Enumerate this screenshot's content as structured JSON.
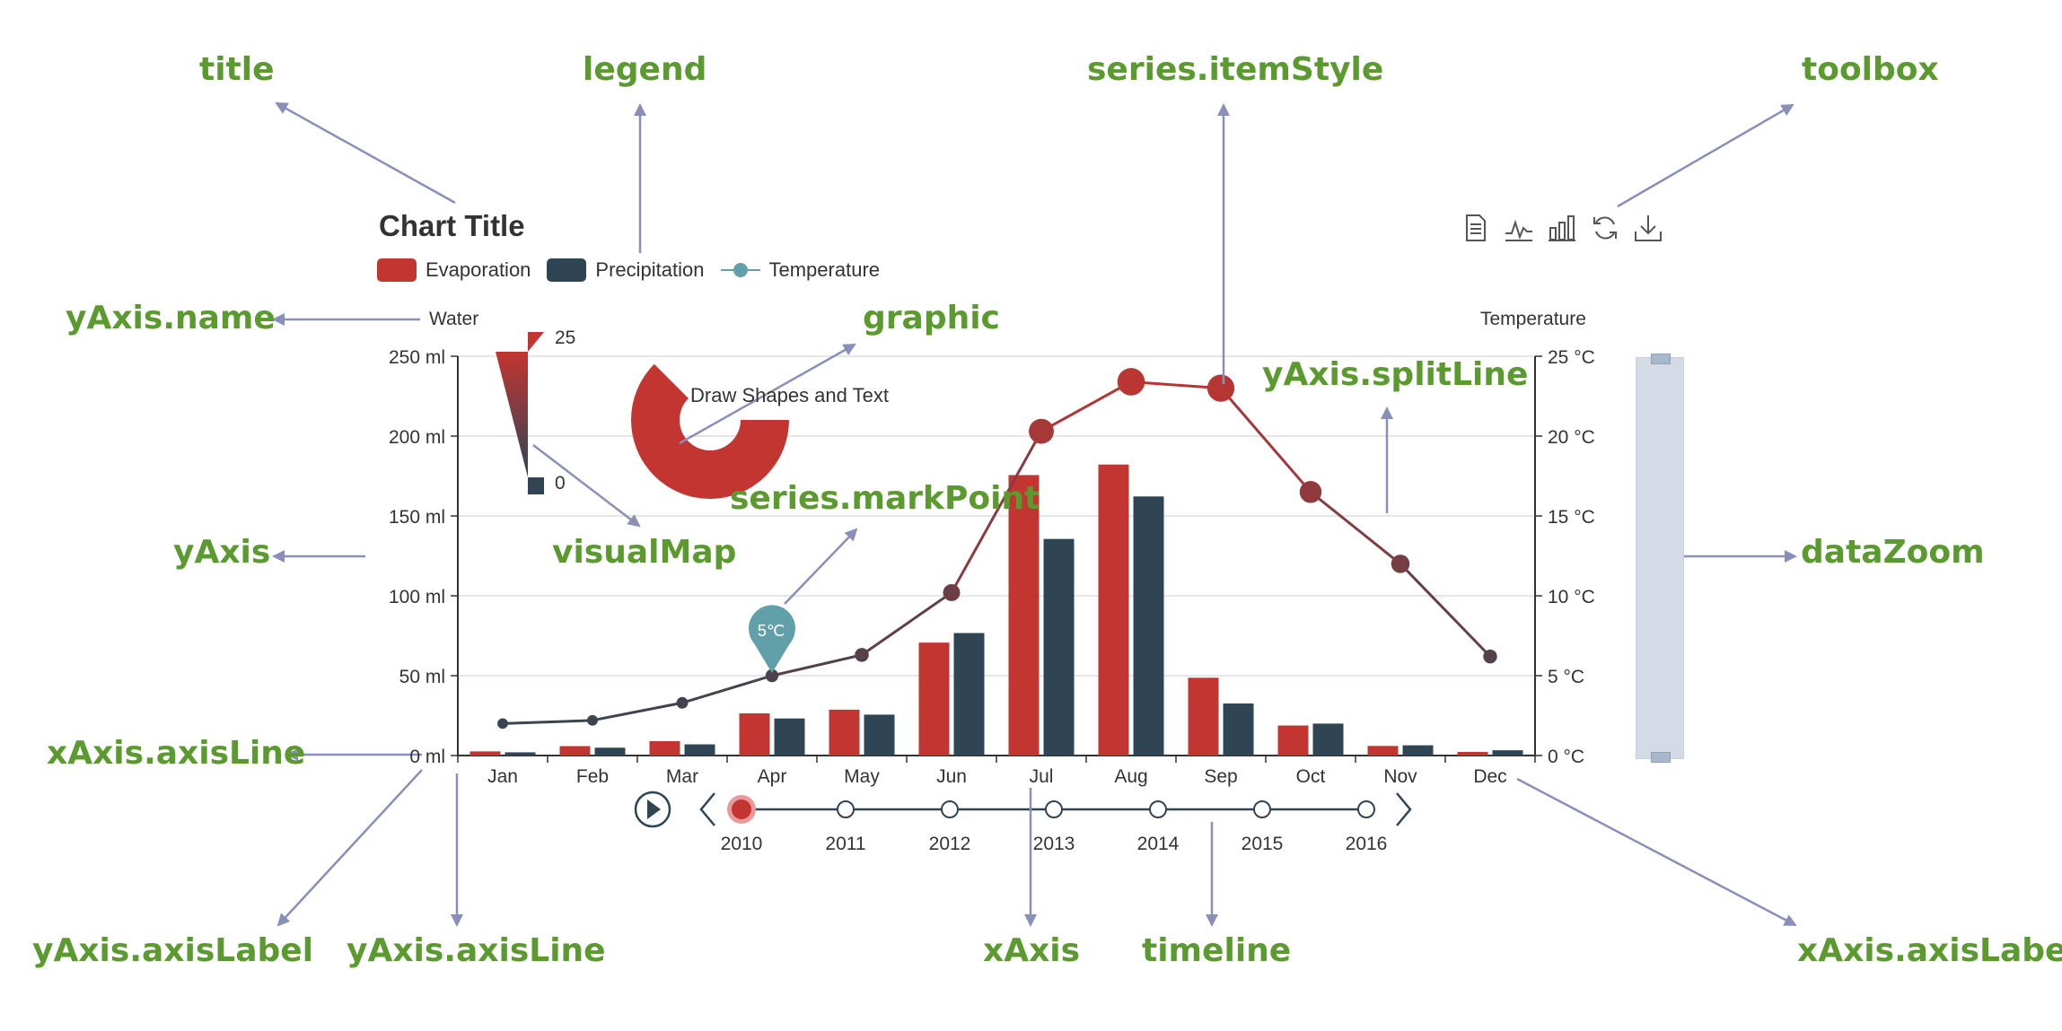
{
  "chart_data": {
    "type": "bar",
    "title": "Chart Title",
    "categories": [
      "Jan",
      "Feb",
      "Mar",
      "Apr",
      "May",
      "Jun",
      "Jul",
      "Aug",
      "Sep",
      "Oct",
      "Nov",
      "Dec"
    ],
    "series": [
      {
        "name": "Evaporation",
        "type": "bar",
        "values": [
          2.6,
          5.9,
          9.0,
          26.4,
          28.7,
          70.7,
          175.6,
          182.2,
          48.7,
          18.8,
          6.0,
          2.3
        ],
        "color": "#c23531"
      },
      {
        "name": "Precipitation",
        "type": "bar",
        "values": [
          2.0,
          4.9,
          7.0,
          23.2,
          25.6,
          76.7,
          135.6,
          162.2,
          32.6,
          20.0,
          6.4,
          3.3
        ],
        "color": "#2f4554"
      },
      {
        "name": "Temperature",
        "type": "line",
        "values": [
          2.0,
          2.2,
          3.3,
          5.0,
          6.3,
          10.2,
          20.3,
          23.4,
          23.0,
          16.5,
          12.0,
          6.2
        ],
        "color": "#61a0a8"
      }
    ],
    "y_left": {
      "name": "Water",
      "ylim": [
        0,
        250
      ],
      "ticks": [
        "0 ml",
        "50 ml",
        "100 ml",
        "150 ml",
        "200 ml",
        "250 ml"
      ]
    },
    "y_right": {
      "name": "Temperature",
      "ylim": [
        0,
        25
      ],
      "ticks": [
        "0 °C",
        "5 °C",
        "10 °C",
        "15 °C",
        "20 °C",
        "25 °C"
      ]
    },
    "grid": true,
    "legend_placement": "top-left",
    "mark_point": {
      "category": "Apr",
      "value": 5.0,
      "label": "5℃"
    },
    "visual_map": {
      "max_label": "25",
      "min_label": "0",
      "max": 25,
      "min": 0
    },
    "graphic_text": "Draw Shapes and Text",
    "timeline": {
      "years": [
        "2010",
        "2011",
        "2012",
        "2013",
        "2014",
        "2015",
        "2016"
      ],
      "current": "2010"
    },
    "data_zoom": {
      "start": 0,
      "end": 100
    }
  },
  "toolbox": {
    "icons": [
      "data-view-icon",
      "line-chart-icon",
      "bar-chart-icon",
      "restore-icon",
      "save-image-icon"
    ]
  },
  "annotations": [
    {
      "key": "title",
      "text": "title"
    },
    {
      "key": "legend",
      "text": "legend"
    },
    {
      "key": "itemStyle",
      "text": "series.itemStyle"
    },
    {
      "key": "toolbox",
      "text": "toolbox"
    },
    {
      "key": "yAxisName",
      "text": "yAxis.name"
    },
    {
      "key": "graphic",
      "text": "graphic"
    },
    {
      "key": "splitLine",
      "text": "yAxis.splitLine"
    },
    {
      "key": "markPoint",
      "text": "series.markPoint"
    },
    {
      "key": "yAxis",
      "text": "yAxis"
    },
    {
      "key": "visualMap",
      "text": "visualMap"
    },
    {
      "key": "dataZoom",
      "text": "dataZoom"
    },
    {
      "key": "xAxisLine",
      "text": "xAxis.axisLine"
    },
    {
      "key": "yAxisLabel",
      "text": "yAxis.axisLabel"
    },
    {
      "key": "yAxisLine",
      "text": "yAxis.axisLine"
    },
    {
      "key": "xAxis",
      "text": "xAxis"
    },
    {
      "key": "timeline",
      "text": "timeline"
    },
    {
      "key": "xAxisLabel",
      "text": "xAxis.axisLabel"
    }
  ],
  "colors": {
    "annotation": "#5b9a2f",
    "arrow": "#8a8fb9",
    "grid": "#dddddd",
    "axis": "#333333",
    "accent_red": "#c23531",
    "dark": "#2f4554",
    "teal": "#61a0a8"
  }
}
